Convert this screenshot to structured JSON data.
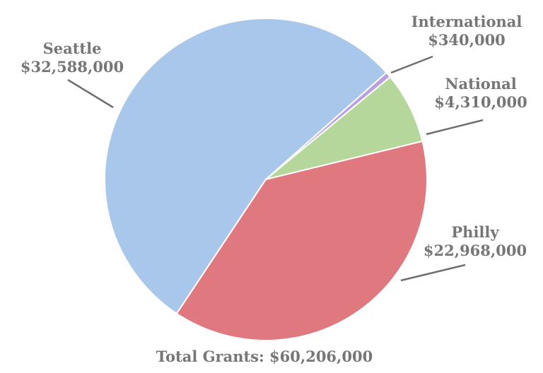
{
  "chart_data": {
    "type": "pie",
    "title": "",
    "footer": "Total Grants: $60,206,000",
    "slices": [
      {
        "label": "Seattle",
        "value": 32588000,
        "value_text": "$32,588,000",
        "color": "#a9c7ea"
      },
      {
        "label": "International",
        "value": 340000,
        "value_text": "$340,000",
        "color": "#b9a0e3"
      },
      {
        "label": "National",
        "value": 4310000,
        "value_text": "$4,310,000",
        "color": "#b5d79b"
      },
      {
        "label": "Philly",
        "value": 22968000,
        "value_text": "$22,968,000",
        "color": "#e07880"
      }
    ],
    "legend": "none",
    "grid": false
  }
}
